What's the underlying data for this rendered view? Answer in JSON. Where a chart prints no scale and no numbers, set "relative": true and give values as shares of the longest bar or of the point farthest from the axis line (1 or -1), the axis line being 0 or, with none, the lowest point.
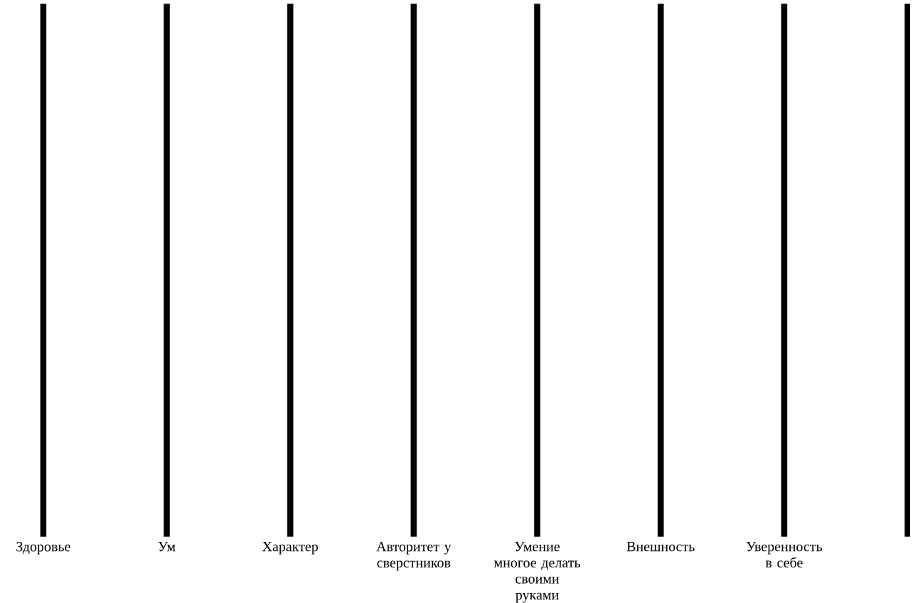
{
  "chart_data": {
    "type": "bar",
    "relative": true,
    "categories": [
      "Здоровье",
      "Ум",
      "Характер",
      "Авторитет у сверстников",
      "Умение многое делать своими руками",
      "Внешность",
      "Уверенность в себе",
      null
    ],
    "values": [
      1,
      1,
      1,
      1,
      1,
      1,
      1,
      1
    ],
    "color": "#000000"
  }
}
